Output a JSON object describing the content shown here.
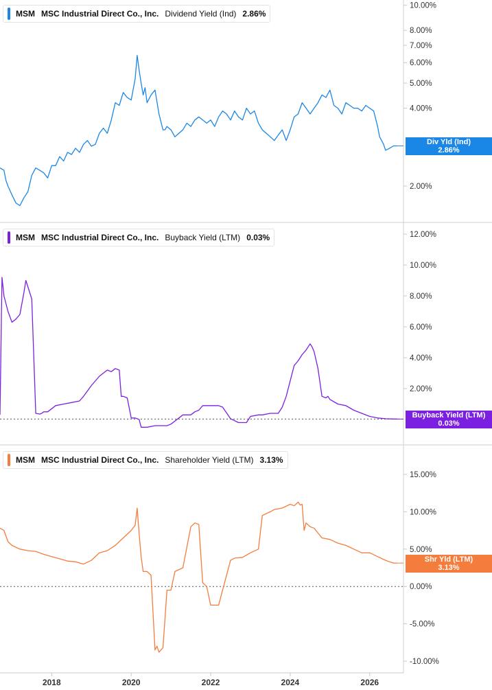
{
  "x_axis": {
    "min": 2016.7,
    "max": 2026.85,
    "ticks": [
      "2018",
      "2020",
      "2022",
      "2024",
      "2026"
    ],
    "tick_values": [
      2018,
      2020,
      2022,
      2024,
      2026
    ]
  },
  "panels": [
    {
      "ticker": "MSM",
      "company": "MSC Industrial Direct Co., Inc.",
      "metric": "Dividend Yield (Ind)",
      "value": "2.86%",
      "color": "#1a86e6",
      "badge": {
        "label": "Div Yld (Ind)",
        "value": "2.86%"
      },
      "y_scale": "log",
      "y_ticks": [
        "10.00%",
        "8.00%",
        "7.00%",
        "6.00%",
        "5.00%",
        "4.00%",
        "2.00%"
      ],
      "y_tick_values": [
        10,
        8,
        7,
        6,
        5,
        4,
        2
      ]
    },
    {
      "ticker": "MSM",
      "company": "MSC Industrial Direct Co., Inc.",
      "metric": "Buyback Yield (LTM)",
      "value": "0.03%",
      "color": "#7b1fe0",
      "badge": {
        "label": "Buyback Yield (LTM)",
        "value": "0.03%"
      },
      "y_scale": "linear",
      "y_ticks": [
        "12.00%",
        "10.00%",
        "8.00%",
        "6.00%",
        "4.00%",
        "2.00%"
      ],
      "y_tick_values": [
        12,
        10,
        8,
        6,
        4,
        2
      ]
    },
    {
      "ticker": "MSM",
      "company": "MSC Industrial Direct Co., Inc.",
      "metric": "Shareholder Yield (LTM)",
      "value": "3.13%",
      "color": "#f47c3c",
      "badge": {
        "label": "Shr Yld (LTM)",
        "value": "3.13%"
      },
      "y_scale": "linear",
      "y_ticks": [
        "15.00%",
        "10.00%",
        "5.00%",
        "0.00%",
        "-5.00%",
        "-10.00%"
      ],
      "y_tick_values": [
        15,
        10,
        5,
        0,
        -5,
        -10
      ]
    }
  ],
  "chart_data": [
    {
      "type": "line",
      "title": "MSM MSC Industrial Direct Co., Inc. Dividend Yield (Ind) 2.86%",
      "y_scale": "log",
      "ylim": [
        1.6,
        10.5
      ],
      "series": [
        {
          "x": [
            2016.7,
            2016.8,
            2016.85,
            2016.9,
            2017.0,
            2017.1,
            2017.2,
            2017.3,
            2017.4,
            2017.5,
            2017.6,
            2017.7,
            2017.8,
            2017.9,
            2018.0,
            2018.1,
            2018.2,
            2018.3,
            2018.4,
            2018.5,
            2018.6,
            2018.7,
            2018.8,
            2018.9,
            2019.0,
            2019.1,
            2019.2,
            2019.3,
            2019.4,
            2019.5,
            2019.6,
            2019.7,
            2019.8,
            2019.9,
            2020.0,
            2020.1,
            2020.15,
            2020.2,
            2020.25,
            2020.3,
            2020.35,
            2020.4,
            2020.5,
            2020.6,
            2020.7,
            2020.8,
            2020.85,
            2020.9,
            2021.0,
            2021.1,
            2021.2,
            2021.3,
            2021.4,
            2021.5,
            2021.6,
            2021.7,
            2021.8,
            2021.9,
            2022.0,
            2022.1,
            2022.2,
            2022.3,
            2022.4,
            2022.5,
            2022.6,
            2022.7,
            2022.8,
            2022.9,
            2023.0,
            2023.1,
            2023.2,
            2023.3,
            2023.4,
            2023.5,
            2023.6,
            2023.7,
            2023.8,
            2023.9,
            2024.0,
            2024.1,
            2024.2,
            2024.3,
            2024.4,
            2024.5,
            2024.6,
            2024.7,
            2024.8,
            2024.9,
            2025.0,
            2025.1,
            2025.2,
            2025.3,
            2025.4,
            2025.5,
            2025.6,
            2025.7,
            2025.8,
            2025.9,
            2026.0,
            2026.1,
            2026.2,
            2026.25,
            2026.3,
            2026.35,
            2026.4,
            2026.5,
            2026.6,
            2026.7
          ],
          "values": [
            2.35,
            2.3,
            2.1,
            2.0,
            1.85,
            1.72,
            1.68,
            1.8,
            1.9,
            2.2,
            2.35,
            2.3,
            2.25,
            2.15,
            2.4,
            2.4,
            2.6,
            2.5,
            2.7,
            2.65,
            2.8,
            2.7,
            2.9,
            3.0,
            2.85,
            2.9,
            3.2,
            3.35,
            3.2,
            3.6,
            4.2,
            4.1,
            4.6,
            4.4,
            4.3,
            5.2,
            6.4,
            5.6,
            5.0,
            4.5,
            4.8,
            4.2,
            4.5,
            4.7,
            3.8,
            3.3,
            3.3,
            3.4,
            3.3,
            3.1,
            3.2,
            3.3,
            3.5,
            3.4,
            3.6,
            3.7,
            3.6,
            3.5,
            3.6,
            3.4,
            3.7,
            3.9,
            3.8,
            3.6,
            3.9,
            3.7,
            3.6,
            4.0,
            3.8,
            3.9,
            3.5,
            3.3,
            3.2,
            3.1,
            3.0,
            3.15,
            3.3,
            3.0,
            3.3,
            3.7,
            3.8,
            4.2,
            4.0,
            3.8,
            4.0,
            4.2,
            4.5,
            4.4,
            4.7,
            4.1,
            4.0,
            3.8,
            4.2,
            4.1,
            4.0,
            4.0,
            3.9,
            4.1,
            4.0,
            3.9,
            3.4,
            3.1,
            3.0,
            2.9,
            2.75,
            2.8,
            2.86,
            2.86
          ]
        }
      ]
    },
    {
      "type": "line",
      "title": "MSM MSC Industrial Direct Co., Inc. Buyback Yield (LTM) 0.03%",
      "ylim": [
        -0.5,
        12.5
      ],
      "series": [
        {
          "x": [
            2016.7,
            2016.75,
            2016.8,
            2016.9,
            2017.0,
            2017.1,
            2017.2,
            2017.3,
            2017.35,
            2017.4,
            2017.5,
            2017.6,
            2017.7,
            2017.75,
            2017.8,
            2017.9,
            2018.0,
            2018.1,
            2018.3,
            2018.5,
            2018.7,
            2018.8,
            2019.0,
            2019.2,
            2019.3,
            2019.4,
            2019.5,
            2019.6,
            2019.7,
            2019.75,
            2019.8,
            2019.9,
            2020.0,
            2020.1,
            2020.2,
            2020.25,
            2020.4,
            2020.6,
            2020.9,
            2021.0,
            2021.3,
            2021.5,
            2021.6,
            2021.7,
            2021.8,
            2022.0,
            2022.2,
            2022.3,
            2022.5,
            2022.7,
            2022.9,
            2023.0,
            2023.2,
            2023.3,
            2023.5,
            2023.7,
            2023.8,
            2023.9,
            2024.0,
            2024.1,
            2024.2,
            2024.3,
            2024.4,
            2024.5,
            2024.55,
            2024.6,
            2024.7,
            2024.8,
            2024.9,
            2024.95,
            2025.0,
            2025.2,
            2025.4,
            2025.6,
            2025.8,
            2026.0,
            2026.2,
            2026.4,
            2026.6,
            2026.7
          ],
          "values": [
            0.3,
            9.2,
            8.0,
            7.0,
            6.3,
            6.5,
            6.8,
            8.2,
            9.0,
            8.6,
            7.8,
            0.4,
            0.35,
            0.4,
            0.5,
            0.5,
            0.7,
            0.9,
            1.0,
            1.1,
            1.2,
            1.5,
            2.2,
            2.8,
            3.0,
            3.2,
            3.1,
            3.3,
            3.2,
            1.5,
            1.5,
            1.4,
            0.1,
            0.1,
            0.0,
            -0.5,
            -0.5,
            -0.4,
            -0.4,
            -0.3,
            0.3,
            0.3,
            0.5,
            0.6,
            0.9,
            0.9,
            0.9,
            0.8,
            0.05,
            -0.2,
            -0.2,
            0.2,
            0.3,
            0.3,
            0.4,
            0.4,
            0.8,
            1.5,
            2.5,
            3.5,
            3.8,
            4.2,
            4.5,
            4.9,
            4.7,
            4.4,
            3.3,
            1.5,
            1.4,
            1.5,
            1.3,
            1.0,
            0.9,
            0.6,
            0.4,
            0.2,
            0.1,
            0.05,
            0.03,
            0.03
          ]
        }
      ]
    },
    {
      "type": "line",
      "title": "MSM MSC Industrial Direct Co., Inc. Shareholder Yield (LTM) 3.13%",
      "ylim": [
        -11,
        17
      ],
      "series": [
        {
          "x": [
            2016.7,
            2016.8,
            2016.9,
            2017.0,
            2017.2,
            2017.4,
            2017.6,
            2017.8,
            2018.0,
            2018.2,
            2018.4,
            2018.6,
            2018.8,
            2019.0,
            2019.2,
            2019.4,
            2019.6,
            2019.8,
            2020.0,
            2020.1,
            2020.15,
            2020.2,
            2020.25,
            2020.3,
            2020.4,
            2020.5,
            2020.6,
            2020.65,
            2020.7,
            2020.8,
            2020.9,
            2021.0,
            2021.1,
            2021.3,
            2021.5,
            2021.6,
            2021.7,
            2021.8,
            2021.9,
            2022.0,
            2022.2,
            2022.3,
            2022.5,
            2022.6,
            2022.8,
            2023.0,
            2023.2,
            2023.3,
            2023.5,
            2023.6,
            2023.8,
            2024.0,
            2024.1,
            2024.2,
            2024.25,
            2024.3,
            2024.35,
            2024.4,
            2024.5,
            2024.6,
            2024.8,
            2025.0,
            2025.2,
            2025.4,
            2025.6,
            2025.8,
            2026.0,
            2026.2,
            2026.4,
            2026.5,
            2026.6,
            2026.7
          ],
          "values": [
            7.8,
            7.5,
            6.0,
            5.5,
            5.0,
            4.8,
            4.7,
            4.3,
            4.0,
            3.7,
            3.4,
            3.3,
            3.0,
            3.5,
            4.5,
            4.8,
            5.5,
            6.5,
            7.5,
            8.2,
            10.5,
            7.0,
            4.0,
            2.0,
            2.0,
            1.5,
            -8.5,
            -8.0,
            -8.8,
            -8.2,
            -0.5,
            -0.5,
            2.0,
            2.5,
            8.0,
            8.5,
            8.3,
            0.5,
            0.0,
            -2.5,
            -2.5,
            -0.5,
            3.5,
            3.8,
            3.9,
            4.5,
            5.0,
            9.5,
            10.0,
            10.3,
            10.5,
            11.0,
            10.8,
            11.3,
            10.9,
            11.0,
            7.5,
            8.5,
            8.0,
            7.8,
            6.5,
            6.3,
            5.8,
            5.5,
            5.0,
            4.5,
            4.5,
            4.0,
            3.5,
            3.3,
            3.13,
            3.13
          ]
        }
      ]
    }
  ]
}
